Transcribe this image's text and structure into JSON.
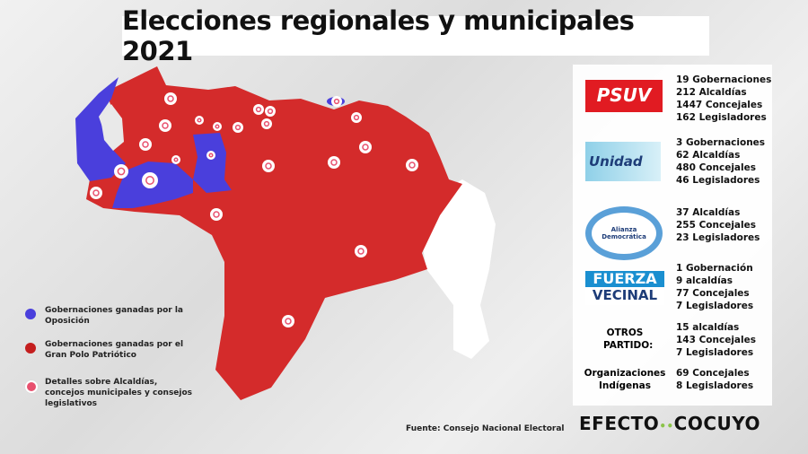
{
  "title": "Elecciones regionales y municipales 2021",
  "colors": {
    "opposition": "#4a3fdc",
    "government": "#d42b2b",
    "marker": "#e8506e",
    "unclaimed": "#ffffff"
  },
  "legend": [
    {
      "label": "Gobernaciones ganadas por la Oposición",
      "color": "#4a3fdc"
    },
    {
      "label": "Gobernaciones ganadas por el Gran Polo Patriótico",
      "color": "#c41e1e"
    },
    {
      "label": "Detalles sobre Alcaldías, concejos municipales y consejos legislativos",
      "icon": "target-marker-icon"
    }
  ],
  "parties": [
    {
      "logo": "PSUV",
      "stats": [
        "19 Gobernaciones",
        "212 Alcaldías",
        "1447 Concejales",
        "162 Legisladores"
      ]
    },
    {
      "logo": "Unidad",
      "stats": [
        "3 Gobernaciones",
        "62 Alcaldías",
        "480 Concejales",
        "46 Legisladores"
      ]
    },
    {
      "logo": "Alianza Democrática",
      "stats": [
        "37 Alcaldías",
        "255 Concejales",
        "23 Legisladores"
      ]
    },
    {
      "logo": "FUERZA VECINAL",
      "logo_line1": "FUERZA",
      "logo_line2": "VECINAL",
      "stats": [
        "1 Gobernación",
        "9 alcaldías",
        "77 Concejales",
        "7 Legisladores"
      ]
    },
    {
      "label": "OTROS PARTIDO:",
      "stats": [
        "15 alcaldías",
        "143 Concejales",
        "7 Legisladores"
      ]
    },
    {
      "label": "Organizaciones Indígenas",
      "stats": [
        "69 Concejales",
        "8 Legisladores"
      ]
    }
  ],
  "source": "Fuente: Consejo Nacional Electoral",
  "brand": {
    "left": "EFECTO",
    "sep": "••",
    "right": "COCUYO"
  }
}
